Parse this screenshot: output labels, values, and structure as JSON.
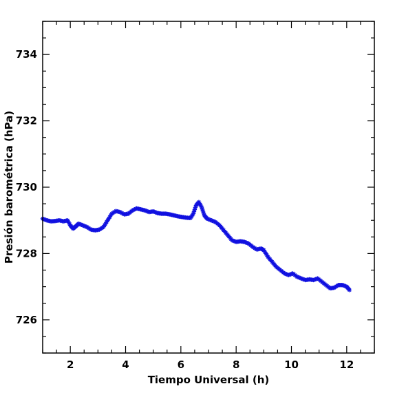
{
  "chart_data": {
    "type": "scatter",
    "xlabel": "Tiempo Universal (h)",
    "ylabel": "Presión barométrica (hPa)",
    "xlim": [
      1,
      13
    ],
    "ylim": [
      725,
      735
    ],
    "x_ticks": [
      2,
      4,
      6,
      8,
      10,
      12
    ],
    "y_ticks": [
      726,
      728,
      730,
      732,
      734
    ],
    "marker_color": "#1010e0",
    "marker": "asterisk",
    "series": [
      {
        "points": [
          [
            1.0,
            729.05
          ],
          [
            1.15,
            729.0
          ],
          [
            1.3,
            728.97
          ],
          [
            1.45,
            728.98
          ],
          [
            1.6,
            729.0
          ],
          [
            1.75,
            728.97
          ],
          [
            1.9,
            729.0
          ],
          [
            2.0,
            728.85
          ],
          [
            2.1,
            728.75
          ],
          [
            2.2,
            728.82
          ],
          [
            2.3,
            728.9
          ],
          [
            2.45,
            728.85
          ],
          [
            2.6,
            728.8
          ],
          [
            2.75,
            728.72
          ],
          [
            2.9,
            728.7
          ],
          [
            3.05,
            728.72
          ],
          [
            3.2,
            728.8
          ],
          [
            3.35,
            729.0
          ],
          [
            3.5,
            729.2
          ],
          [
            3.65,
            729.28
          ],
          [
            3.8,
            729.25
          ],
          [
            3.95,
            729.18
          ],
          [
            4.1,
            729.2
          ],
          [
            4.25,
            729.3
          ],
          [
            4.4,
            729.36
          ],
          [
            4.55,
            729.33
          ],
          [
            4.7,
            729.3
          ],
          [
            4.85,
            729.25
          ],
          [
            5.0,
            729.27
          ],
          [
            5.15,
            729.22
          ],
          [
            5.3,
            729.2
          ],
          [
            5.45,
            729.2
          ],
          [
            5.6,
            729.18
          ],
          [
            5.75,
            729.15
          ],
          [
            5.9,
            729.12
          ],
          [
            6.05,
            729.1
          ],
          [
            6.2,
            729.08
          ],
          [
            6.35,
            729.07
          ],
          [
            6.45,
            729.2
          ],
          [
            6.55,
            729.45
          ],
          [
            6.65,
            729.55
          ],
          [
            6.75,
            729.4
          ],
          [
            6.85,
            729.15
          ],
          [
            6.95,
            729.05
          ],
          [
            7.1,
            729.0
          ],
          [
            7.25,
            728.95
          ],
          [
            7.4,
            728.85
          ],
          [
            7.55,
            728.7
          ],
          [
            7.7,
            728.55
          ],
          [
            7.85,
            728.4
          ],
          [
            8.0,
            728.35
          ],
          [
            8.15,
            728.37
          ],
          [
            8.3,
            728.35
          ],
          [
            8.45,
            728.3
          ],
          [
            8.6,
            728.2
          ],
          [
            8.75,
            728.12
          ],
          [
            8.9,
            728.15
          ],
          [
            9.0,
            728.1
          ],
          [
            9.15,
            727.9
          ],
          [
            9.3,
            727.75
          ],
          [
            9.45,
            727.6
          ],
          [
            9.6,
            727.5
          ],
          [
            9.75,
            727.4
          ],
          [
            9.9,
            727.35
          ],
          [
            10.05,
            727.4
          ],
          [
            10.2,
            727.3
          ],
          [
            10.35,
            727.25
          ],
          [
            10.5,
            727.2
          ],
          [
            10.65,
            727.22
          ],
          [
            10.8,
            727.2
          ],
          [
            10.95,
            727.25
          ],
          [
            11.1,
            727.15
          ],
          [
            11.25,
            727.05
          ],
          [
            11.4,
            726.95
          ],
          [
            11.55,
            726.97
          ],
          [
            11.7,
            727.05
          ],
          [
            11.85,
            727.05
          ],
          [
            12.0,
            727.0
          ],
          [
            12.1,
            726.9
          ]
        ]
      }
    ]
  }
}
